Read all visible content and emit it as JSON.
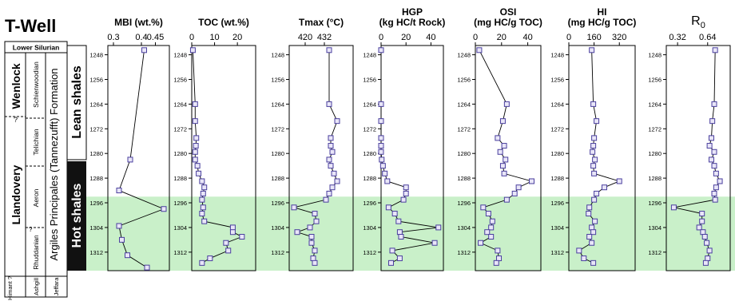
{
  "well_title": "T-Well",
  "strat": {
    "period": "Lower Silurian",
    "series_upper": "Wenlock",
    "series_upper_q": "?",
    "series_lower": "Llandovery",
    "stage_sheinwoodian": "Schienwoodian",
    "stage_telichian": "Telichian",
    "stage_aeron": "Aeron",
    "stage_rhuddanian": "Rhuddanian",
    "stage_rhuddanian_q": "?",
    "stage_himant": "Himant ?",
    "stage_ashgill": "Ashgill",
    "formation": "Argiles Principales (Tannezufft) Formation",
    "jeffara": "Jeffara",
    "lean_label": "Lean shales",
    "hot_label": "Hot shales"
  },
  "chart_data": {
    "type": "line",
    "y_axis": {
      "label": "depth",
      "ticks": [
        1248,
        1256,
        1264,
        1272,
        1280,
        1288,
        1296,
        1304,
        1312
      ],
      "range": [
        1245,
        1318
      ],
      "inverted": true
    },
    "hot_shale_interval": [
      1294,
      1318
    ],
    "depths": [
      1246.5,
      1264,
      1269.5,
      1275,
      1277.5,
      1279.5,
      1282,
      1284,
      1286.5,
      1289,
      1291,
      1293,
      1295,
      1297.5,
      1299.5,
      1302,
      1304,
      1305.5,
      1307,
      1309,
      1311.5,
      1314,
      1315.5
    ],
    "panels": [
      {
        "title": "MBI (wt.%)",
        "xticks": [
          "0.3",
          "0.4",
          "0.45"
        ],
        "xlim": [
          0.28,
          0.5
        ],
        "depths": [
          1246.5,
          1282,
          1292,
          1298,
          1303.5,
          1308,
          1313,
          1317
        ],
        "values": [
          0.41,
          0.36,
          0.32,
          0.48,
          0.32,
          0.33,
          0.35,
          0.42
        ]
      },
      {
        "title": "TOC (wt.%)",
        "xticks": [
          "0",
          "10",
          "20"
        ],
        "xlim": [
          0,
          28
        ],
        "values": [
          0.5,
          1.5,
          1.5,
          2,
          1.8,
          1.5,
          1.5,
          2.5,
          3,
          4.5,
          5.5,
          5,
          4.5,
          5,
          4.5,
          5.5,
          18,
          18,
          22,
          15,
          16,
          8,
          4.5
        ]
      },
      {
        "title": "Tmax (°C)",
        "xticks": [
          "420",
          "432"
        ],
        "xlim": [
          410,
          450
        ],
        "values": [
          435,
          435,
          440,
          436,
          436,
          437,
          435,
          436,
          438,
          440,
          437,
          435,
          433,
          413,
          426,
          427,
          423,
          415,
          424,
          424,
          426,
          425,
          426
        ]
      },
      {
        "title": "HGP (kg HC/t Rock)",
        "xlabel": "HGP",
        "xunit": "(kg HC/t Rock)",
        "xticks": [
          "0",
          "20",
          "40"
        ],
        "xlim": [
          0,
          50
        ],
        "values": [
          0,
          0,
          0,
          0,
          0,
          0,
          0.5,
          1.5,
          3,
          5,
          20,
          20,
          18,
          6,
          11,
          14,
          46,
          15,
          16,
          43,
          9,
          15,
          8
        ]
      },
      {
        "title": "OSI (mg HC/g TOC)",
        "xlabel": "OSI",
        "xunit": "(mg HC/g TOC)",
        "xticks": [
          "0",
          "20",
          "40"
        ],
        "xlim": [
          0,
          50
        ],
        "values": [
          3,
          24,
          21,
          17,
          22,
          19,
          23,
          21,
          22,
          43,
          33,
          30,
          24,
          6,
          10,
          13,
          12,
          9,
          12,
          4,
          17,
          18,
          16
        ]
      },
      {
        "title": "HI (mg HC/g TOC)",
        "xlabel": "HI",
        "xunit": "(mg HC/g TOC)",
        "xticks": [
          "0",
          "160",
          "320"
        ],
        "xlim": [
          0,
          420
        ],
        "values": [
          145,
          155,
          175,
          160,
          155,
          150,
          165,
          155,
          160,
          320,
          225,
          175,
          160,
          130,
          125,
          165,
          145,
          155,
          130,
          145,
          65,
          95,
          155
        ]
      },
      {
        "title": "R0",
        "xlabel": "R",
        "xsub": "0",
        "xticks": [
          "0.32",
          "0.64"
        ],
        "xlim": [
          0.2,
          0.88
        ],
        "values": [
          0.72,
          0.71,
          0.69,
          0.68,
          0.66,
          0.71,
          0.68,
          0.71,
          0.73,
          0.77,
          0.73,
          0.71,
          0.72,
          0.28,
          0.58,
          0.58,
          0.55,
          0.59,
          0.61,
          0.63,
          0.66,
          0.64,
          0.62
        ]
      }
    ]
  },
  "colors": {
    "hot_fill": "#c9f0c9",
    "marker_stroke": "#4a3f9e",
    "line": "#000000"
  }
}
